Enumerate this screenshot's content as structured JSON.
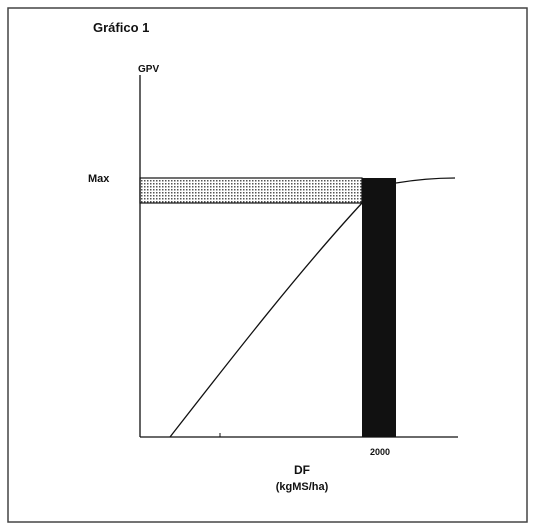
{
  "title": "Gráfico 1",
  "y_axis_label": "GPV",
  "max_label": "Max",
  "x_tick_label": "2000",
  "x_axis_label": "DF",
  "x_axis_unit": "(kgMS/ha)"
}
